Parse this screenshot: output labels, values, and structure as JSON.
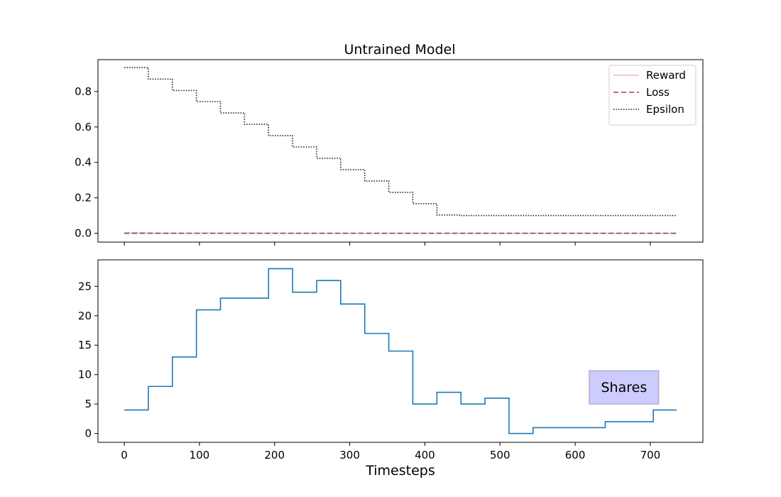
{
  "chart_data": [
    {
      "type": "line",
      "title": "Untrained Model",
      "xlim": [
        -35,
        770
      ],
      "ylim": [
        -0.05,
        0.98
      ],
      "xticks": [
        0,
        100,
        200,
        300,
        400,
        500,
        600,
        700
      ],
      "yticks": [
        0.0,
        0.2,
        0.4,
        0.6,
        0.8
      ],
      "ytick_labels": [
        "0.0",
        "0.2",
        "0.4",
        "0.6",
        "0.8"
      ],
      "show_xtick_labels": false,
      "legend_position": "top-right",
      "series": [
        {
          "name": "Reward",
          "color": "#f0b5b5",
          "style": "solid",
          "points": [
            [
              0,
              0.002
            ],
            [
              20,
              0.003
            ],
            [
              40,
              0.001
            ],
            [
              735,
              0.0
            ]
          ]
        },
        {
          "name": "Loss",
          "color": "#8e3d87",
          "style": "dashed",
          "points": [
            [
              0,
              0.0
            ],
            [
              735,
              0.0
            ]
          ]
        },
        {
          "name": "Epsilon",
          "color": "#1c1c3a",
          "style": "dotted",
          "step": true,
          "points": [
            [
              0,
              0.935
            ],
            [
              32,
              0.87
            ],
            [
              64,
              0.806
            ],
            [
              96,
              0.743
            ],
            [
              128,
              0.679
            ],
            [
              160,
              0.615
            ],
            [
              192,
              0.551
            ],
            [
              224,
              0.487
            ],
            [
              256,
              0.423
            ],
            [
              288,
              0.359
            ],
            [
              320,
              0.295
            ],
            [
              352,
              0.231
            ],
            [
              384,
              0.167
            ],
            [
              416,
              0.103
            ],
            [
              448,
              0.1
            ],
            [
              735,
              0.1
            ]
          ]
        }
      ]
    },
    {
      "type": "line",
      "xlabel": "Timesteps",
      "xlim": [
        -35,
        770
      ],
      "ylim": [
        -1.5,
        29.5
      ],
      "xticks": [
        0,
        100,
        200,
        300,
        400,
        500,
        600,
        700
      ],
      "xtick_labels": [
        "0",
        "100",
        "200",
        "300",
        "400",
        "500",
        "600",
        "700"
      ],
      "yticks": [
        0,
        5,
        10,
        15,
        20,
        25
      ],
      "ytick_labels": [
        "0",
        "5",
        "10",
        "15",
        "20",
        "25"
      ],
      "annotation": {
        "text": "Shares",
        "x": 665,
        "y": 7.9,
        "box_color": "#ccccff"
      },
      "series": [
        {
          "color": "#1f77b4",
          "style": "solid",
          "step": true,
          "points": [
            [
              0,
              4
            ],
            [
              32,
              8
            ],
            [
              64,
              13
            ],
            [
              96,
              21
            ],
            [
              128,
              23
            ],
            [
              192,
              28
            ],
            [
              224,
              24
            ],
            [
              256,
              26
            ],
            [
              288,
              22
            ],
            [
              320,
              17
            ],
            [
              352,
              14
            ],
            [
              384,
              5
            ],
            [
              416,
              7
            ],
            [
              448,
              5
            ],
            [
              480,
              6
            ],
            [
              512,
              0
            ],
            [
              544,
              1
            ],
            [
              640,
              2
            ],
            [
              704,
              4
            ],
            [
              735,
              4
            ]
          ]
        }
      ]
    }
  ]
}
